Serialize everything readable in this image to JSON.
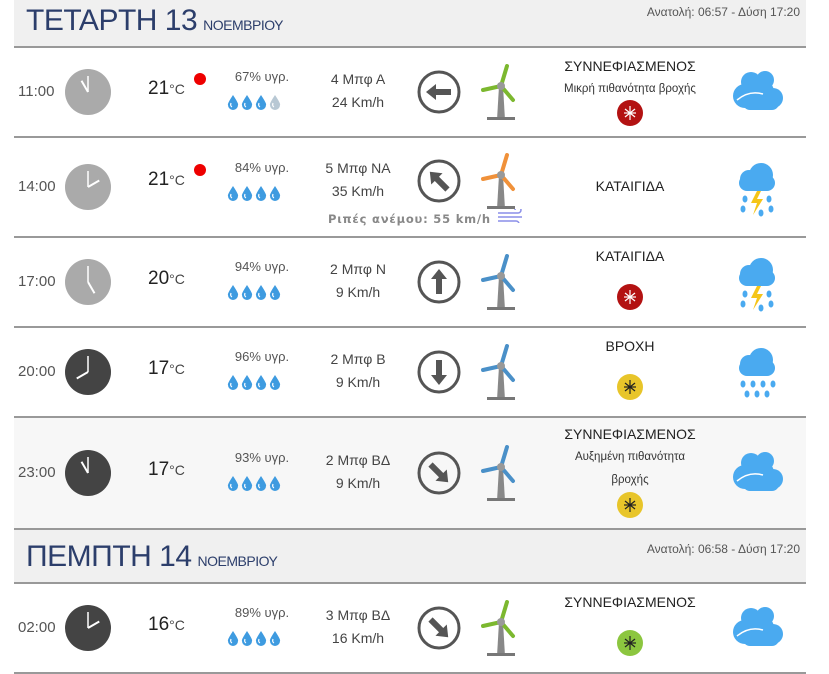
{
  "days": [
    {
      "name": "ΤΕΤΑΡΤΗ 13",
      "month": "ΝΟΕΜΒΡΙΟΥ",
      "sun": "Ανατολή: 06:57  - Δύση 17:20",
      "rows": [
        {
          "time": "11:00",
          "night": false,
          "temp": "21",
          "unit": "°C",
          "hot": true,
          "humidity": "67% υγρ.",
          "drops": 3,
          "beaufort": "4 Μπφ Α",
          "speed": "24 Km/h",
          "dir_deg": 270,
          "turbine_color": "#7cb82f",
          "desc": "ΣΥΝΝΕΦΙΑΣΜΕΝΟΣ",
          "sub": "Μικρή πιθανότητα βροχής",
          "mosquito": "#b31212",
          "icon": "cloudy"
        },
        {
          "time": "14:00",
          "night": false,
          "temp": "21",
          "unit": "°C",
          "hot": true,
          "humidity": "84% υγρ.",
          "drops": 4,
          "beaufort": "5 Μπφ ΝΑ",
          "speed": "35 Km/h",
          "dir_deg": 315,
          "turbine_color": "#f0913a",
          "desc": "ΚΑΤΑΙΓΙΔΑ",
          "sub": "",
          "mosquito": "",
          "icon": "storm",
          "gust": "Ριπές ανέμου: 55 km/h"
        },
        {
          "time": "17:00",
          "night": false,
          "temp": "20",
          "unit": "°C",
          "hot": false,
          "humidity": "94% υγρ.",
          "drops": 4,
          "beaufort": "2 Μπφ Ν",
          "speed": "9 Km/h",
          "dir_deg": 0,
          "turbine_color": "#4a90c8",
          "desc": "ΚΑΤΑΙΓΙΔΑ",
          "sub": "",
          "mosquito": "#b31212",
          "icon": "storm"
        },
        {
          "time": "20:00",
          "night": true,
          "temp": "17",
          "unit": "°C",
          "hot": false,
          "humidity": "96% υγρ.",
          "drops": 4,
          "beaufort": "2 Μπφ Β",
          "speed": "9 Km/h",
          "dir_deg": 180,
          "turbine_color": "#4a90c8",
          "desc": "ΒΡΟΧΗ",
          "sub": "",
          "mosquito": "#e8c52a",
          "icon": "rain"
        },
        {
          "time": "23:00",
          "night": true,
          "temp": "17",
          "unit": "°C",
          "hot": false,
          "humidity": "93% υγρ.",
          "drops": 4,
          "beaufort": "2 Μπφ ΒΔ",
          "speed": "9 Km/h",
          "dir_deg": 135,
          "turbine_color": "#4a90c8",
          "desc": "ΣΥΝΝΕΦΙΑΣΜΕΝΟΣ",
          "sub": "Αυξημένη πιθανότητα βροχής",
          "mosquito": "#e8c52a",
          "icon": "cloudy"
        }
      ]
    },
    {
      "name": "ΠΕΜΠΤΗ 14",
      "month": "ΝΟΕΜΒΡΙΟΥ",
      "sun": "Ανατολή: 06:58  - Δύση 17:20",
      "rows": [
        {
          "time": "02:00",
          "night": true,
          "temp": "16",
          "unit": "°C",
          "hot": false,
          "humidity": "89% υγρ.",
          "drops": 4,
          "beaufort": "3 Μπφ ΒΔ",
          "speed": "16 Km/h",
          "dir_deg": 135,
          "turbine_color": "#7cb82f",
          "desc": "ΣΥΝΝΕΦΙΑΣΜΕΝΟΣ",
          "sub": "",
          "mosquito": "#8cc63f",
          "icon": "cloudy"
        }
      ]
    }
  ]
}
